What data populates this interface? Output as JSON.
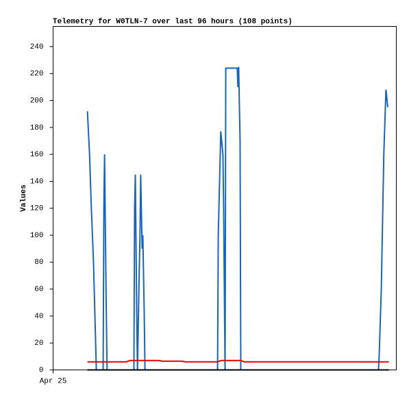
{
  "chart_data": {
    "type": "line",
    "title": "Telemetry for W0TLN-7 over last 96 hours (108 points)",
    "y_label": "Values",
    "xlim": [
      0,
      96
    ],
    "xticks": [
      {
        "value": 0,
        "label": "Apr 25"
      }
    ],
    "ylim": [
      0,
      255
    ],
    "yticks": [
      0,
      20,
      40,
      60,
      80,
      100,
      120,
      140,
      160,
      180,
      200,
      220,
      240
    ],
    "grid": false,
    "series": [
      {
        "color": "#1565c0",
        "x": [
          9.6,
          10.2,
          10.7,
          11.3,
          11.9,
          12.1,
          14.0,
          14.2,
          14.4,
          14.8,
          15.1,
          22.6,
          22.8,
          23.0,
          23.4,
          23.6,
          24.0,
          24.3,
          24.5,
          24.9,
          25.1,
          25.5,
          25.7,
          46.0,
          46.2,
          46.9,
          47.5,
          47.7,
          48.1,
          48.3,
          51.5,
          51.7,
          51.9,
          52.3,
          52.5,
          91.0,
          91.2,
          91.8,
          92.5,
          93.1,
          93.6
        ],
        "values": [
          192,
          160,
          120,
          80,
          20,
          0,
          0,
          120,
          160,
          60,
          0,
          0,
          120,
          145,
          40,
          0,
          60,
          100,
          145,
          90,
          100,
          40,
          0,
          0,
          100,
          177,
          160,
          120,
          0,
          224,
          224,
          210,
          225,
          170,
          0,
          0,
          10,
          60,
          160,
          208,
          195
        ]
      },
      {
        "color": "#e00000",
        "x": [
          9.6,
          20.5,
          21.5,
          29.5,
          30.5,
          36.0,
          37.0,
          46.0,
          47.0,
          52.5,
          53.5,
          93.9
        ],
        "values": [
          6,
          6,
          7,
          7,
          6.5,
          6.5,
          6,
          6,
          7,
          7,
          6,
          6
        ]
      },
      {
        "color": "#000000",
        "x": [
          9.6,
          93.9
        ],
        "values": [
          0,
          0
        ]
      }
    ]
  }
}
